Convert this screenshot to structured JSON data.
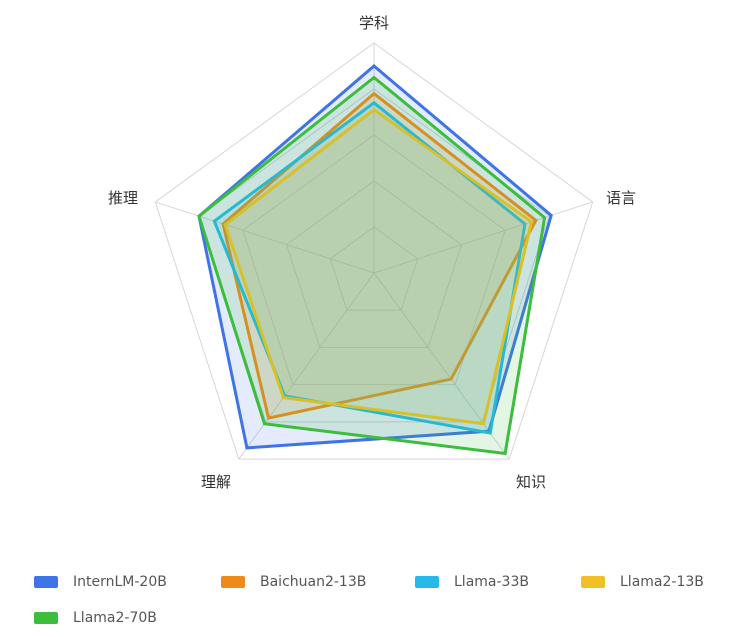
{
  "chart_data": {
    "type": "radar",
    "indicators": [
      "学科",
      "语言",
      "知识",
      "理解",
      "推理"
    ],
    "max": 10,
    "series": [
      {
        "name": "InternLM-20B",
        "color": "#3f73e8",
        "values": [
          9.0,
          8.1,
          8.5,
          9.4,
          8.0
        ]
      },
      {
        "name": "Baichuan2-13B",
        "color": "#ee8a1c",
        "values": [
          7.8,
          7.4,
          5.7,
          7.8,
          6.9
        ]
      },
      {
        "name": "Llama-33B",
        "color": "#27b9e8",
        "values": [
          7.4,
          6.9,
          8.6,
          6.6,
          7.3
        ]
      },
      {
        "name": "Llama2-13B",
        "color": "#f1c027",
        "values": [
          7.1,
          7.2,
          8.1,
          6.7,
          6.8
        ]
      },
      {
        "name": "Llama2-70B",
        "color": "#3cbd3c",
        "values": [
          8.5,
          7.8,
          9.7,
          8.1,
          8.0
        ]
      }
    ],
    "legend_position": "bottom"
  }
}
